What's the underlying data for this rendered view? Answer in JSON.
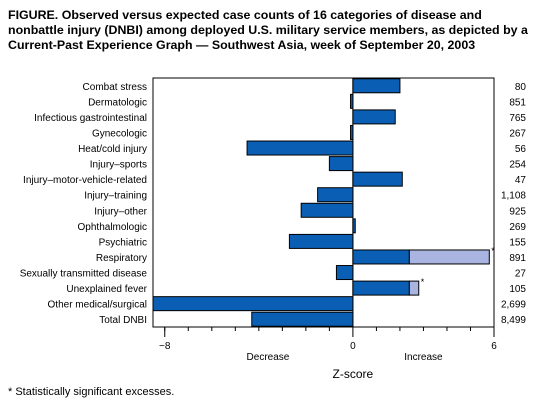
{
  "figure": {
    "title": "FIGURE. Observed versus expected case counts of 16 categories of disease and nonbattle injury (DNBI) among deployed U.S. military service members, as depicted by a Current-Past Experience Graph — Southwest Asia, week of September 20, 2003",
    "footnote": "* Statistically significant excesses."
  },
  "chart_data": {
    "type": "bar",
    "orientation": "horizontal",
    "categories": [
      "Combat stress",
      "Dermatologic",
      "Infectious gastrointestinal",
      "Gynecologic",
      "Heat/cold injury",
      "Injury–sports",
      "Injury–motor-vehicle-related",
      "Injury–training",
      "Injury–other",
      "Ophthalmologic",
      "Psychiatric",
      "Respiratory",
      "Sexually transmitted disease",
      "Unexplained fever",
      "Other medical/surgical",
      "Total DNBI"
    ],
    "counts": [
      "80",
      "851",
      "765",
      "267",
      "56",
      "254",
      "47",
      "1,108",
      "925",
      "269",
      "155",
      "891",
      "27",
      "105",
      "2,699",
      "8,499"
    ],
    "series": [
      {
        "values": [
          2.0,
          -0.1,
          1.8,
          -0.1,
          -4.5,
          -1.0,
          2.1,
          -1.5,
          -2.2,
          0.1,
          -2.7,
          2.4,
          -0.7,
          2.4,
          -8.5,
          -4.3
        ]
      },
      {
        "values": [
          0,
          0,
          0,
          0,
          0,
          0,
          0,
          0,
          0,
          0,
          0,
          3.4,
          0,
          0.4,
          0,
          0
        ]
      }
    ],
    "significant_marker": "*",
    "significant": [
      false,
      false,
      false,
      false,
      false,
      false,
      false,
      false,
      false,
      false,
      false,
      true,
      false,
      true,
      false,
      false
    ],
    "xlabel": "Z-score",
    "xlim": [
      -8.5,
      6
    ],
    "xticks": [
      -8,
      0,
      6
    ],
    "xtick_labels": [
      "−8",
      "0",
      "6"
    ],
    "direction_labels": {
      "decrease": "Decrease",
      "increase": "Increase"
    },
    "colors": {
      "primary": "#0a5fb4",
      "excess": "#aab4e0",
      "stroke": "#000000"
    }
  }
}
